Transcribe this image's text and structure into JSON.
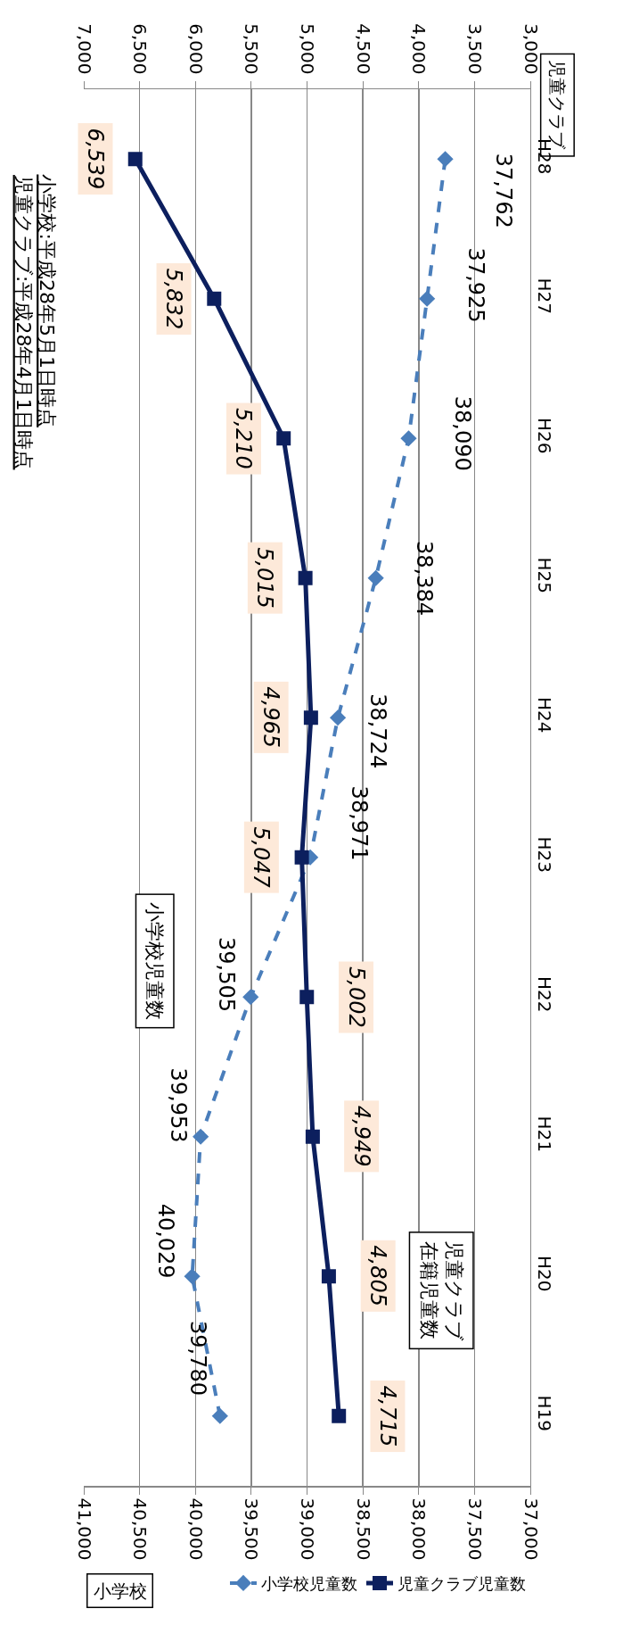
{
  "chart_data": {
    "type": "line",
    "orientation": "horizontal",
    "categories": [
      "H28",
      "H27",
      "H26",
      "H25",
      "H24",
      "H23",
      "H22",
      "H21",
      "H20",
      "H19"
    ],
    "series": [
      {
        "name": "児童クラブ児童数",
        "color": "#0c1f5e",
        "marker": "square",
        "line_style": "solid",
        "axis": "x2",
        "values": [
          6539,
          5832,
          5210,
          5015,
          4965,
          5047,
          5002,
          4949,
          4805,
          4715
        ],
        "value_labels": [
          "6,539",
          "5,832",
          "5,210",
          "5,015",
          "4,965",
          "5,047",
          "5,002",
          "4,949",
          "4,805",
          "4,715"
        ]
      },
      {
        "name": "小学校児童数",
        "color": "#4a7ebb",
        "marker": "diamond",
        "line_style": "dashed",
        "values": [
          37762,
          37925,
          38090,
          38384,
          38724,
          38971,
          39505,
          39953,
          40029,
          39780
        ],
        "value_labels": [
          "37,762",
          "37,925",
          "38,090",
          "38,384",
          "38,724",
          "38,971",
          "39,505",
          "39,953",
          "40,029",
          "39,780"
        ]
      }
    ],
    "xlabel": "小学校",
    "x2label": "児童クラブ",
    "xlim": [
      41000,
      37000
    ],
    "xticks": [
      {
        "value": 41000,
        "label": "41,000"
      },
      {
        "value": 40500,
        "label": "40,500"
      },
      {
        "value": 40000,
        "label": "40,000"
      },
      {
        "value": 39500,
        "label": "39,500"
      },
      {
        "value": 39000,
        "label": "39,000"
      },
      {
        "value": 38500,
        "label": "38,500"
      },
      {
        "value": 38000,
        "label": "38,000"
      },
      {
        "value": 37500,
        "label": "37,500"
      },
      {
        "value": 37000,
        "label": "37,000"
      }
    ],
    "x2lim": [
      7000,
      3000
    ],
    "x2ticks": [
      {
        "value": 7000,
        "label": "7,000"
      },
      {
        "value": 6500,
        "label": "6,500"
      },
      {
        "value": 6000,
        "label": "6,000"
      },
      {
        "value": 5500,
        "label": "5,500"
      },
      {
        "value": 5000,
        "label": "5,000"
      },
      {
        "value": 4500,
        "label": "4,500"
      },
      {
        "value": 4000,
        "label": "4,000"
      },
      {
        "value": 3500,
        "label": "3,500"
      },
      {
        "value": 3000,
        "label": "3,000"
      }
    ],
    "annotations": [
      "児童クラブ:平成28年4月1日時点",
      "小学校:平成28年5月1日時点",
      "小学校児童数",
      "児童クラブ在籍児童数"
    ],
    "grid": "x",
    "legend": "bottom right"
  }
}
